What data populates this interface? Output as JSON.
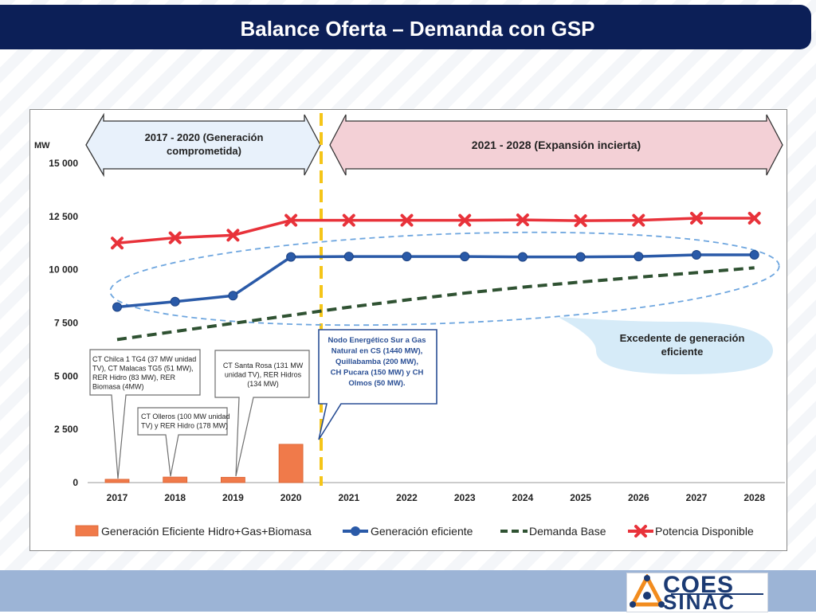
{
  "header": {
    "title": "Balance Oferta – Demanda con GSP"
  },
  "logo": {
    "line1": "COES",
    "line2": "SINAC"
  },
  "chart_data": {
    "type": "line",
    "ylabel": "MW",
    "ylim": [
      0,
      15000
    ],
    "yticks": [
      0,
      2500,
      5000,
      7500,
      10000,
      12500,
      15000
    ],
    "ytick_labels": [
      "0",
      "2 500",
      "5 000",
      "7 500",
      "10 000",
      "12 500",
      "15 000"
    ],
    "categories": [
      "2017",
      "2018",
      "2019",
      "2020",
      "2021",
      "2022",
      "2023",
      "2024",
      "2025",
      "2026",
      "2027",
      "2028"
    ],
    "series": [
      {
        "name": "Generación Eficiente Hidro+Gas+Biomasa",
        "type": "bar",
        "color": "#f07a4a",
        "values": [
          155,
          260,
          250,
          1800,
          null,
          null,
          null,
          null,
          null,
          null,
          null,
          null
        ]
      },
      {
        "name": "Generación eficiente",
        "type": "line-marker",
        "color": "#2a5aa8",
        "values": [
          8250,
          8500,
          8780,
          10600,
          10620,
          10620,
          10620,
          10600,
          10600,
          10620,
          10700,
          10700
        ]
      },
      {
        "name": "Demanda Base",
        "type": "dashed-line",
        "color": "#2f5232",
        "values": [
          6720,
          7100,
          7480,
          7860,
          8240,
          8580,
          8900,
          9180,
          9420,
          9650,
          9860,
          10090
        ]
      },
      {
        "name": "Potencia Disponible",
        "type": "line-x-marker",
        "color": "#e8323a",
        "values": [
          11250,
          11500,
          11620,
          12320,
          12320,
          12320,
          12320,
          12340,
          12300,
          12320,
          12420,
          12420
        ]
      }
    ],
    "period_banners": [
      {
        "lines": [
          "2017 - 2020 (Generación",
          "comprometida)"
        ]
      },
      {
        "lines": [
          "2021 - 2028 (Expansión incierta)"
        ]
      }
    ],
    "callouts": [
      {
        "lines": [
          "CT Chilca 1 TG4 (37 MW unidad",
          "TV), CT Malacas TG5 (51 MW),",
          "RER Hidro (83 MW), RER",
          "Biomasa (4MW)"
        ]
      },
      {
        "lines": [
          "CT Olleros (100 MW unidad",
          "TV) y RER Hidro (178 MW)"
        ]
      },
      {
        "lines": [
          "CT Santa Rosa (131 MW",
          "unidad TV), RER Hidros",
          "(134 MW)"
        ]
      },
      {
        "lines": [
          "Nodo Energético Sur a Gas",
          "Natural en CS (1440 MW),",
          "Quillabamba (200 MW),",
          "CH Pucara (150 MW) y CH",
          "Olmos (50 MW)."
        ]
      }
    ],
    "annotation": {
      "lines": [
        "Excedente de generación",
        "eficiente"
      ]
    },
    "legend_position": "bottom"
  }
}
